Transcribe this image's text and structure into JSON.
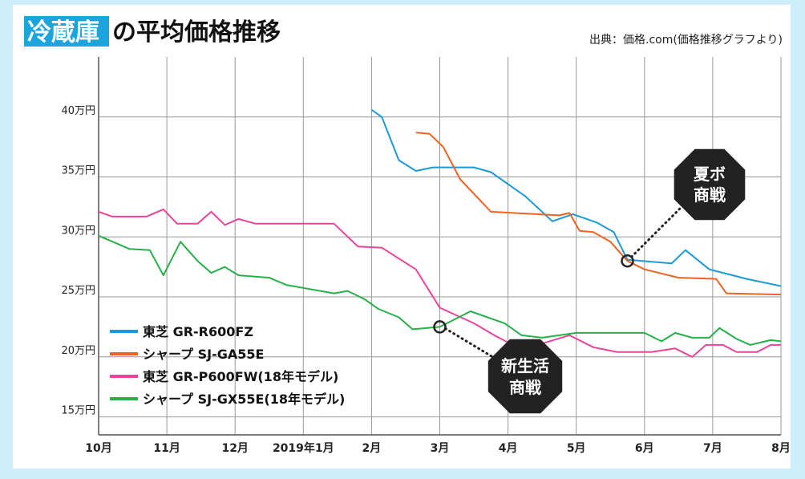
{
  "title": {
    "highlight": "冷蔵庫",
    "rest": "の平均価格推移"
  },
  "source": "出典：価格.com(価格推移グラフより)",
  "callouts": {
    "summer": [
      "夏ボ",
      "商戦"
    ],
    "spring": [
      "新生活",
      "商戦"
    ]
  },
  "colors": {
    "background": "#cdeefa",
    "title_highlight": "#1ca4dc",
    "badge": "#222222",
    "grid": "#999999"
  },
  "chart_data": {
    "type": "line",
    "x_tick_labels": [
      "10月",
      "11月",
      "12月",
      "2019年1月",
      "2月",
      "3月",
      "4月",
      "5月",
      "6月",
      "7月",
      "8月"
    ],
    "y_tick_labels": [
      "15万円",
      "20万円",
      "25万円",
      "30万円",
      "35万円",
      "40万円"
    ],
    "y_ticks": [
      15,
      20,
      25,
      30,
      35,
      40
    ],
    "ylim": [
      13.5,
      45
    ],
    "xlim": [
      0,
      10
    ],
    "x_unit": "month index (0 = 10月 2018 … 10 = 8月 2019)",
    "y_unit": "万円",
    "grid": true,
    "legend_position": "bottom-left",
    "series": [
      {
        "name": "東芝 GR-R600FZ",
        "color": "#1b9ad6",
        "points": [
          [
            4.0,
            40.6
          ],
          [
            4.15,
            40.0
          ],
          [
            4.4,
            36.4
          ],
          [
            4.65,
            35.5
          ],
          [
            4.9,
            35.8
          ],
          [
            5.5,
            35.8
          ],
          [
            5.75,
            35.4
          ],
          [
            6.25,
            33.4
          ],
          [
            6.65,
            31.3
          ],
          [
            6.95,
            31.9
          ],
          [
            7.3,
            31.2
          ],
          [
            7.55,
            30.4
          ],
          [
            7.75,
            28.1
          ],
          [
            8.4,
            27.8
          ],
          [
            8.6,
            28.9
          ],
          [
            8.95,
            27.3
          ],
          [
            9.5,
            26.5
          ],
          [
            10.0,
            25.9
          ]
        ]
      },
      {
        "name": "シャープ SJ-GA55E",
        "color": "#ee6323",
        "points": [
          [
            4.65,
            38.7
          ],
          [
            4.85,
            38.6
          ],
          [
            5.05,
            37.5
          ],
          [
            5.3,
            34.8
          ],
          [
            5.75,
            32.1
          ],
          [
            6.75,
            31.8
          ],
          [
            6.9,
            32.0
          ],
          [
            7.05,
            30.5
          ],
          [
            7.25,
            30.4
          ],
          [
            7.5,
            29.6
          ],
          [
            7.75,
            28.0
          ],
          [
            8.0,
            27.3
          ],
          [
            8.5,
            26.6
          ],
          [
            9.05,
            26.5
          ],
          [
            9.2,
            25.3
          ],
          [
            10.0,
            25.2
          ]
        ]
      },
      {
        "name": "東芝 GR-P600FW(18年モデル)",
        "color": "#e8459a",
        "points": [
          [
            0.0,
            32.1
          ],
          [
            0.2,
            31.7
          ],
          [
            0.7,
            31.7
          ],
          [
            0.95,
            32.3
          ],
          [
            1.15,
            31.1
          ],
          [
            1.45,
            31.1
          ],
          [
            1.65,
            32.1
          ],
          [
            1.85,
            31.0
          ],
          [
            2.05,
            31.5
          ],
          [
            2.3,
            31.1
          ],
          [
            3.45,
            31.1
          ],
          [
            3.8,
            29.2
          ],
          [
            4.15,
            29.1
          ],
          [
            4.65,
            27.3
          ],
          [
            5.0,
            24.1
          ],
          [
            5.5,
            22.8
          ],
          [
            5.8,
            21.8
          ],
          [
            6.2,
            20.6
          ],
          [
            6.9,
            21.8
          ],
          [
            7.25,
            20.8
          ],
          [
            7.6,
            20.4
          ],
          [
            8.1,
            20.4
          ],
          [
            8.45,
            20.7
          ],
          [
            8.7,
            20.0
          ],
          [
            8.9,
            21.0
          ],
          [
            9.15,
            21.0
          ],
          [
            9.35,
            20.4
          ],
          [
            9.65,
            20.4
          ],
          [
            9.85,
            21.0
          ],
          [
            10.0,
            21.0
          ]
        ]
      },
      {
        "name": "シャープ SJ-GX55E(18年モデル)",
        "color": "#27b04a",
        "points": [
          [
            0.0,
            30.1
          ],
          [
            0.45,
            29.0
          ],
          [
            0.75,
            28.9
          ],
          [
            0.95,
            26.8
          ],
          [
            1.2,
            29.6
          ],
          [
            1.45,
            28.0
          ],
          [
            1.65,
            27.0
          ],
          [
            1.85,
            27.5
          ],
          [
            2.05,
            26.8
          ],
          [
            2.5,
            26.6
          ],
          [
            2.75,
            26.0
          ],
          [
            3.45,
            25.3
          ],
          [
            3.65,
            25.5
          ],
          [
            3.9,
            24.8
          ],
          [
            4.1,
            24.0
          ],
          [
            4.4,
            23.3
          ],
          [
            4.6,
            22.3
          ],
          [
            5.0,
            22.5
          ],
          [
            5.45,
            23.8
          ],
          [
            5.95,
            22.8
          ],
          [
            6.2,
            21.8
          ],
          [
            6.5,
            21.6
          ],
          [
            7.0,
            22.0
          ],
          [
            8.0,
            22.0
          ],
          [
            8.25,
            21.3
          ],
          [
            8.45,
            22.0
          ],
          [
            8.7,
            21.6
          ],
          [
            8.95,
            21.6
          ],
          [
            9.1,
            22.4
          ],
          [
            9.35,
            21.5
          ],
          [
            9.55,
            21.0
          ],
          [
            9.85,
            21.4
          ],
          [
            10.0,
            21.3
          ]
        ]
      }
    ],
    "markers": [
      [
        5.0,
        22.5
      ],
      [
        7.75,
        28.0
      ]
    ]
  }
}
